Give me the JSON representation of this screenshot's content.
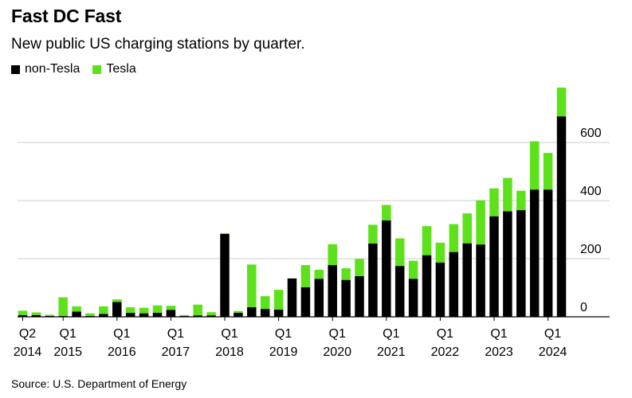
{
  "header": {
    "title": "Fast DC Fast",
    "subtitle": "New public US charging stations by quarter."
  },
  "legend": [
    {
      "label": "non-Tesla",
      "color": "#000000"
    },
    {
      "label": "Tesla",
      "color": "#5ce11a"
    }
  ],
  "source": "Source: U.S. Department of Energy",
  "chart_data": {
    "type": "bar",
    "stacked": true,
    "title": "Fast DC Fast",
    "subtitle": "New public US charging stations by quarter.",
    "xlabel": "",
    "ylabel": "",
    "ylim": [
      0,
      800
    ],
    "y_ticks": [
      0,
      200,
      400,
      600
    ],
    "grid": true,
    "legend_position": "top-left",
    "categories": [
      "Q2 2014",
      "Q3 2014",
      "Q4 2014",
      "Q1 2015",
      "Q2 2015",
      "Q3 2015",
      "Q4 2015",
      "Q1 2016",
      "Q2 2016",
      "Q3 2016",
      "Q4 2016",
      "Q1 2017",
      "Q2 2017",
      "Q3 2017",
      "Q4 2017",
      "Q1 2018",
      "Q2 2018",
      "Q3 2018",
      "Q4 2018",
      "Q1 2019",
      "Q2 2019",
      "Q3 2019",
      "Q4 2019",
      "Q1 2020",
      "Q2 2020",
      "Q3 2020",
      "Q4 2020",
      "Q1 2021",
      "Q2 2021",
      "Q3 2021",
      "Q4 2021",
      "Q1 2022",
      "Q2 2022",
      "Q3 2022",
      "Q4 2022",
      "Q1 2023",
      "Q2 2023",
      "Q3 2023",
      "Q4 2023",
      "Q1 2024",
      "Q2 2024"
    ],
    "series": [
      {
        "name": "non-Tesla",
        "color": "#000000",
        "values": [
          6,
          6,
          3,
          3,
          18,
          3,
          10,
          51,
          14,
          12,
          14,
          24,
          3,
          5,
          5,
          285,
          14,
          33,
          27,
          25,
          132,
          102,
          131,
          178,
          127,
          140,
          252,
          332,
          175,
          131,
          212,
          187,
          223,
          253,
          249,
          346,
          363,
          367,
          438,
          438,
          690
        ]
      },
      {
        "name": "Tesla",
        "color": "#5ce11a",
        "values": [
          15,
          9,
          4,
          64,
          18,
          9,
          26,
          9,
          19,
          19,
          25,
          14,
          3,
          37,
          11,
          3,
          6,
          147,
          44,
          68,
          0,
          76,
          31,
          72,
          40,
          59,
          65,
          53,
          95,
          62,
          100,
          68,
          96,
          103,
          152,
          96,
          115,
          67,
          166,
          126,
          99
        ]
      }
    ],
    "x_tick_labels": [
      {
        "index": 0,
        "line1": "Q2",
        "line2": "2014"
      },
      {
        "index": 3,
        "line1": "Q1",
        "line2": "2015"
      },
      {
        "index": 7,
        "line1": "Q1",
        "line2": "2016"
      },
      {
        "index": 11,
        "line1": "Q1",
        "line2": "2017"
      },
      {
        "index": 15,
        "line1": "Q1",
        "line2": "2018"
      },
      {
        "index": 19,
        "line1": "Q1",
        "line2": "2019"
      },
      {
        "index": 23,
        "line1": "Q1",
        "line2": "2020"
      },
      {
        "index": 27,
        "line1": "Q1",
        "line2": "2021"
      },
      {
        "index": 31,
        "line1": "Q1",
        "line2": "2022"
      },
      {
        "index": 35,
        "line1": "Q1",
        "line2": "2023"
      },
      {
        "index": 39,
        "line1": "Q1",
        "line2": "2024"
      }
    ]
  }
}
